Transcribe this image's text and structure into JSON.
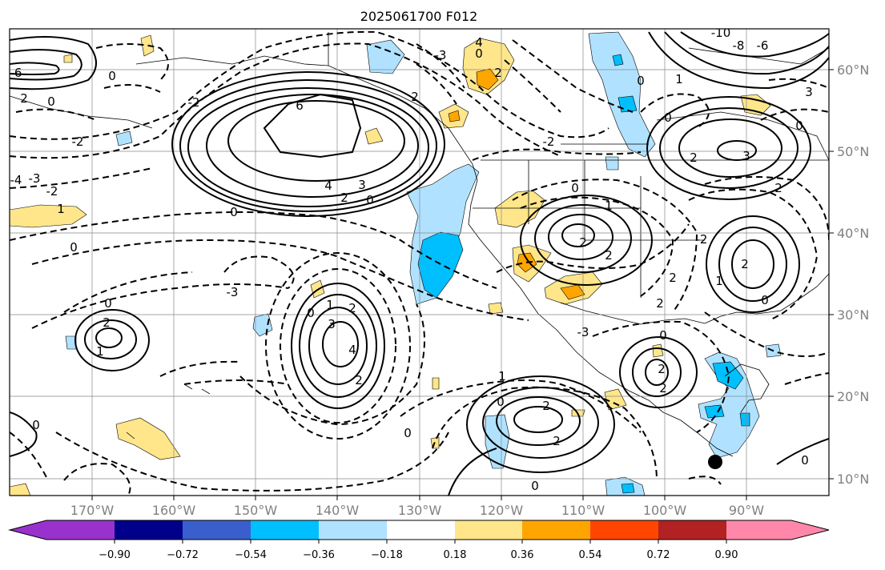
{
  "figure": {
    "title": "2025061700 F012"
  },
  "map": {
    "longitude_labels": [
      "170°W",
      "160°W",
      "150°W",
      "140°W",
      "130°W",
      "120°W",
      "110°W",
      "100°W",
      "90°W"
    ],
    "latitude_labels": [
      "60°N",
      "50°N",
      "40°N",
      "30°N",
      "20°N",
      "10°N"
    ],
    "contour_labels": [
      "6",
      "4",
      "3",
      "2",
      "1",
      "0",
      "-1",
      "-2",
      "-3",
      "-4",
      "-6",
      "-8",
      "-10"
    ],
    "marker": "black-dot-marker"
  },
  "colorbar": {
    "tick_labels": [
      "−0.90",
      "−0.72",
      "−0.54",
      "−0.36",
      "−0.18",
      "0.18",
      "0.36",
      "0.54",
      "0.72",
      "0.90"
    ],
    "colors": [
      "#9932cc",
      "#00008b",
      "#3a5fcd",
      "#00bfff",
      "#b0e2ff",
      "#ffffff",
      "#ffe68a",
      "#ffa500",
      "#ff4500",
      "#b22222",
      "#ff88aa"
    ]
  }
}
